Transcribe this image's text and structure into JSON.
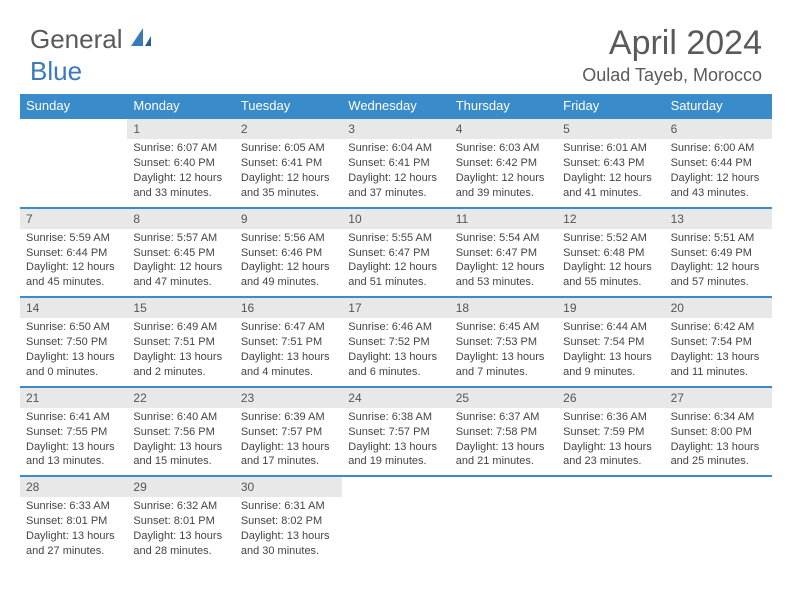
{
  "logo": {
    "general": "General",
    "blue": "Blue"
  },
  "title": "April 2024",
  "location": "Oulad Tayeb, Morocco",
  "colors": {
    "header_bg": "#3a8bc9",
    "header_text": "#ffffff",
    "daynum_bg": "#e8e8e8",
    "text": "#444444",
    "week_border": "#3a8bc9",
    "logo_gray": "#5a5a5a",
    "logo_blue": "#3a7ab8"
  },
  "day_headers": [
    "Sunday",
    "Monday",
    "Tuesday",
    "Wednesday",
    "Thursday",
    "Friday",
    "Saturday"
  ],
  "weeks": [
    [
      {
        "empty": true
      },
      {
        "day": "1",
        "sunrise": "Sunrise: 6:07 AM",
        "sunset": "Sunset: 6:40 PM",
        "daylight1": "Daylight: 12 hours",
        "daylight2": "and 33 minutes."
      },
      {
        "day": "2",
        "sunrise": "Sunrise: 6:05 AM",
        "sunset": "Sunset: 6:41 PM",
        "daylight1": "Daylight: 12 hours",
        "daylight2": "and 35 minutes."
      },
      {
        "day": "3",
        "sunrise": "Sunrise: 6:04 AM",
        "sunset": "Sunset: 6:41 PM",
        "daylight1": "Daylight: 12 hours",
        "daylight2": "and 37 minutes."
      },
      {
        "day": "4",
        "sunrise": "Sunrise: 6:03 AM",
        "sunset": "Sunset: 6:42 PM",
        "daylight1": "Daylight: 12 hours",
        "daylight2": "and 39 minutes."
      },
      {
        "day": "5",
        "sunrise": "Sunrise: 6:01 AM",
        "sunset": "Sunset: 6:43 PM",
        "daylight1": "Daylight: 12 hours",
        "daylight2": "and 41 minutes."
      },
      {
        "day": "6",
        "sunrise": "Sunrise: 6:00 AM",
        "sunset": "Sunset: 6:44 PM",
        "daylight1": "Daylight: 12 hours",
        "daylight2": "and 43 minutes."
      }
    ],
    [
      {
        "day": "7",
        "sunrise": "Sunrise: 5:59 AM",
        "sunset": "Sunset: 6:44 PM",
        "daylight1": "Daylight: 12 hours",
        "daylight2": "and 45 minutes."
      },
      {
        "day": "8",
        "sunrise": "Sunrise: 5:57 AM",
        "sunset": "Sunset: 6:45 PM",
        "daylight1": "Daylight: 12 hours",
        "daylight2": "and 47 minutes."
      },
      {
        "day": "9",
        "sunrise": "Sunrise: 5:56 AM",
        "sunset": "Sunset: 6:46 PM",
        "daylight1": "Daylight: 12 hours",
        "daylight2": "and 49 minutes."
      },
      {
        "day": "10",
        "sunrise": "Sunrise: 5:55 AM",
        "sunset": "Sunset: 6:47 PM",
        "daylight1": "Daylight: 12 hours",
        "daylight2": "and 51 minutes."
      },
      {
        "day": "11",
        "sunrise": "Sunrise: 5:54 AM",
        "sunset": "Sunset: 6:47 PM",
        "daylight1": "Daylight: 12 hours",
        "daylight2": "and 53 minutes."
      },
      {
        "day": "12",
        "sunrise": "Sunrise: 5:52 AM",
        "sunset": "Sunset: 6:48 PM",
        "daylight1": "Daylight: 12 hours",
        "daylight2": "and 55 minutes."
      },
      {
        "day": "13",
        "sunrise": "Sunrise: 5:51 AM",
        "sunset": "Sunset: 6:49 PM",
        "daylight1": "Daylight: 12 hours",
        "daylight2": "and 57 minutes."
      }
    ],
    [
      {
        "day": "14",
        "sunrise": "Sunrise: 6:50 AM",
        "sunset": "Sunset: 7:50 PM",
        "daylight1": "Daylight: 13 hours",
        "daylight2": "and 0 minutes."
      },
      {
        "day": "15",
        "sunrise": "Sunrise: 6:49 AM",
        "sunset": "Sunset: 7:51 PM",
        "daylight1": "Daylight: 13 hours",
        "daylight2": "and 2 minutes."
      },
      {
        "day": "16",
        "sunrise": "Sunrise: 6:47 AM",
        "sunset": "Sunset: 7:51 PM",
        "daylight1": "Daylight: 13 hours",
        "daylight2": "and 4 minutes."
      },
      {
        "day": "17",
        "sunrise": "Sunrise: 6:46 AM",
        "sunset": "Sunset: 7:52 PM",
        "daylight1": "Daylight: 13 hours",
        "daylight2": "and 6 minutes."
      },
      {
        "day": "18",
        "sunrise": "Sunrise: 6:45 AM",
        "sunset": "Sunset: 7:53 PM",
        "daylight1": "Daylight: 13 hours",
        "daylight2": "and 7 minutes."
      },
      {
        "day": "19",
        "sunrise": "Sunrise: 6:44 AM",
        "sunset": "Sunset: 7:54 PM",
        "daylight1": "Daylight: 13 hours",
        "daylight2": "and 9 minutes."
      },
      {
        "day": "20",
        "sunrise": "Sunrise: 6:42 AM",
        "sunset": "Sunset: 7:54 PM",
        "daylight1": "Daylight: 13 hours",
        "daylight2": "and 11 minutes."
      }
    ],
    [
      {
        "day": "21",
        "sunrise": "Sunrise: 6:41 AM",
        "sunset": "Sunset: 7:55 PM",
        "daylight1": "Daylight: 13 hours",
        "daylight2": "and 13 minutes."
      },
      {
        "day": "22",
        "sunrise": "Sunrise: 6:40 AM",
        "sunset": "Sunset: 7:56 PM",
        "daylight1": "Daylight: 13 hours",
        "daylight2": "and 15 minutes."
      },
      {
        "day": "23",
        "sunrise": "Sunrise: 6:39 AM",
        "sunset": "Sunset: 7:57 PM",
        "daylight1": "Daylight: 13 hours",
        "daylight2": "and 17 minutes."
      },
      {
        "day": "24",
        "sunrise": "Sunrise: 6:38 AM",
        "sunset": "Sunset: 7:57 PM",
        "daylight1": "Daylight: 13 hours",
        "daylight2": "and 19 minutes."
      },
      {
        "day": "25",
        "sunrise": "Sunrise: 6:37 AM",
        "sunset": "Sunset: 7:58 PM",
        "daylight1": "Daylight: 13 hours",
        "daylight2": "and 21 minutes."
      },
      {
        "day": "26",
        "sunrise": "Sunrise: 6:36 AM",
        "sunset": "Sunset: 7:59 PM",
        "daylight1": "Daylight: 13 hours",
        "daylight2": "and 23 minutes."
      },
      {
        "day": "27",
        "sunrise": "Sunrise: 6:34 AM",
        "sunset": "Sunset: 8:00 PM",
        "daylight1": "Daylight: 13 hours",
        "daylight2": "and 25 minutes."
      }
    ],
    [
      {
        "day": "28",
        "sunrise": "Sunrise: 6:33 AM",
        "sunset": "Sunset: 8:01 PM",
        "daylight1": "Daylight: 13 hours",
        "daylight2": "and 27 minutes."
      },
      {
        "day": "29",
        "sunrise": "Sunrise: 6:32 AM",
        "sunset": "Sunset: 8:01 PM",
        "daylight1": "Daylight: 13 hours",
        "daylight2": "and 28 minutes."
      },
      {
        "day": "30",
        "sunrise": "Sunrise: 6:31 AM",
        "sunset": "Sunset: 8:02 PM",
        "daylight1": "Daylight: 13 hours",
        "daylight2": "and 30 minutes."
      },
      {
        "empty": true
      },
      {
        "empty": true
      },
      {
        "empty": true
      },
      {
        "empty": true
      }
    ]
  ]
}
